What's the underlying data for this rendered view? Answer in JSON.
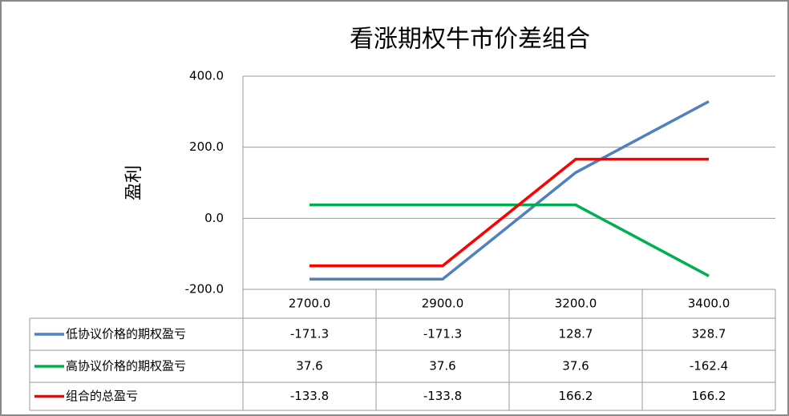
{
  "chart_data": {
    "type": "line",
    "title": "看涨期权牛市价差组合",
    "y_label": "盈利",
    "categories": [
      "2700.0",
      "2900.0",
      "3200.0",
      "3400.0"
    ],
    "series": [
      {
        "name": "低协议价格的期权盈亏",
        "color": "#4f81bd",
        "values": [
          -171.3,
          -171.3,
          128.7,
          328.7
        ]
      },
      {
        "name": "高协议价格的期权盈亏",
        "color": "#00b050",
        "values": [
          37.6,
          37.6,
          37.6,
          -162.4
        ]
      },
      {
        "name": "组合的总盈亏",
        "color": "#ff0000",
        "values": [
          -133.8,
          -133.8,
          166.2,
          166.2
        ]
      }
    ],
    "ylim": [
      -200,
      400
    ],
    "yticks": [
      {
        "value": -200,
        "label": "-200.0"
      },
      {
        "value": 0,
        "label": "0.0"
      },
      {
        "value": 200,
        "label": "200.0"
      },
      {
        "value": 400,
        "label": "400.0"
      }
    ],
    "grid": true,
    "data_table": true
  }
}
